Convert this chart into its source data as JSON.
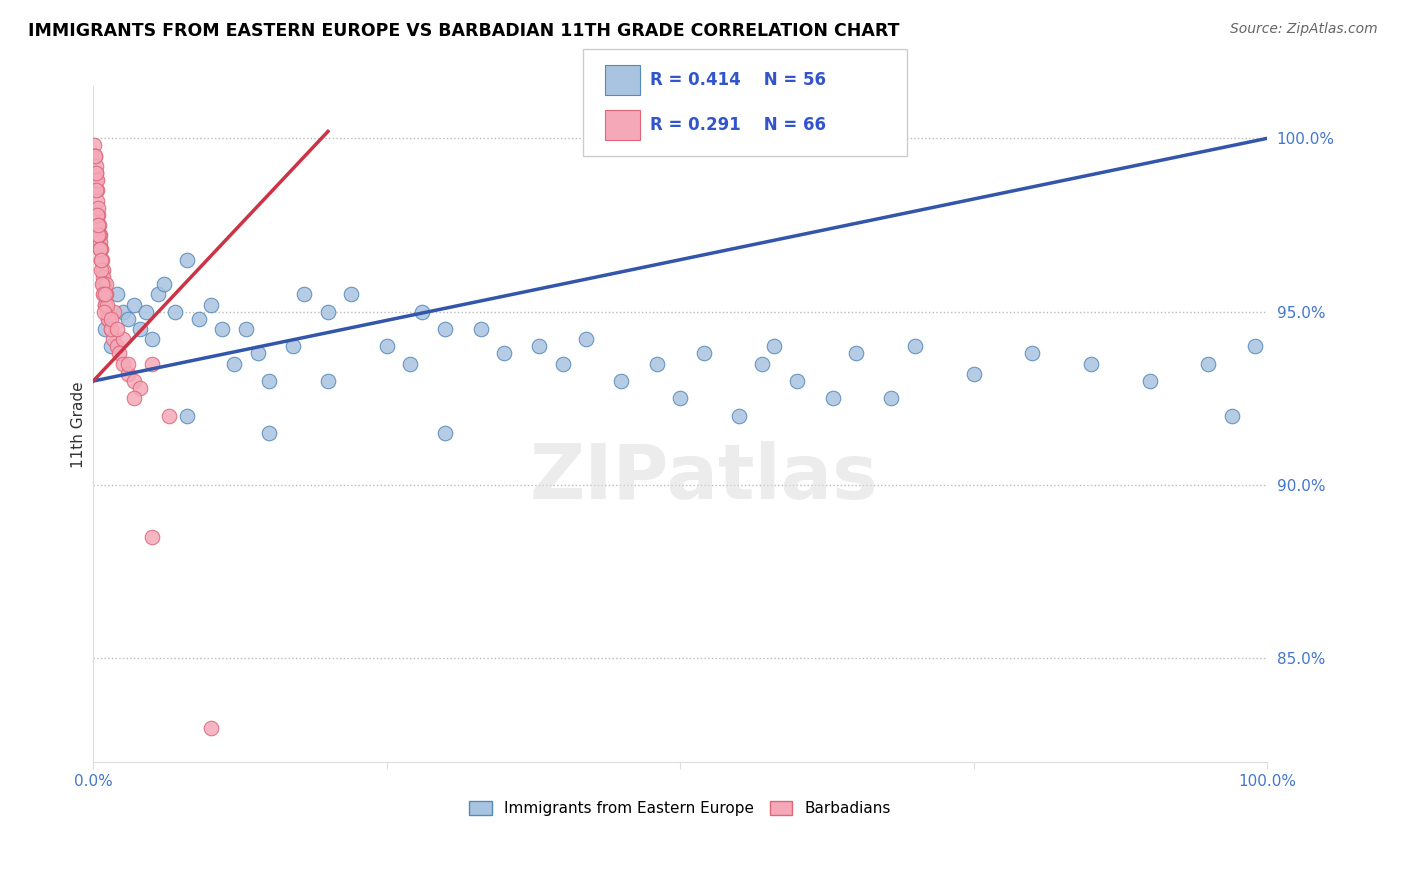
{
  "title": "IMMIGRANTS FROM EASTERN EUROPE VS BARBADIAN 11TH GRADE CORRELATION CHART",
  "source": "Source: ZipAtlas.com",
  "ylabel": "11th Grade",
  "blue_color": "#A8C4E0",
  "pink_color": "#F4A8B8",
  "blue_edge": "#5588BB",
  "pink_edge": "#DD6677",
  "trend_blue": "#3355AA",
  "trend_pink": "#CC3344",
  "legend_blue_R": "R = 0.414",
  "legend_blue_N": "N = 56",
  "legend_pink_R": "R = 0.291",
  "legend_pink_N": "N = 66",
  "legend_label_blue": "Immigrants from Eastern Europe",
  "legend_label_pink": "Barbadians",
  "blue_trend_x0": 0.0,
  "blue_trend_y0": 93.0,
  "blue_trend_x1": 100.0,
  "blue_trend_y1": 100.0,
  "pink_trend_x0": 0.0,
  "pink_trend_y0": 93.0,
  "pink_trend_x1": 20.0,
  "pink_trend_y1": 100.2,
  "ylim_low": 82.0,
  "ylim_high": 101.5,
  "xlim_low": 0.0,
  "xlim_high": 100.0,
  "ytick_vals": [
    85.0,
    90.0,
    95.0,
    100.0
  ],
  "ytick_labels": [
    "85.0%",
    "90.0%",
    "95.0%",
    "100.0%"
  ],
  "xtick_vals": [
    0.0,
    25.0,
    50.0,
    75.0,
    100.0
  ],
  "xtick_labels": [
    "0.0%",
    "",
    "",
    "",
    "100.0%"
  ],
  "blue_x": [
    1.0,
    1.5,
    2.0,
    2.5,
    3.0,
    3.5,
    4.0,
    4.5,
    5.0,
    5.5,
    6.0,
    7.0,
    8.0,
    9.0,
    10.0,
    11.0,
    12.0,
    13.0,
    14.0,
    15.0,
    17.0,
    18.0,
    20.0,
    22.0,
    25.0,
    27.0,
    28.0,
    30.0,
    33.0,
    35.0,
    38.0,
    40.0,
    42.0,
    45.0,
    48.0,
    50.0,
    52.0,
    55.0,
    57.0,
    58.0,
    60.0,
    63.0,
    65.0,
    68.0,
    70.0,
    75.0,
    80.0,
    85.0,
    90.0,
    95.0,
    97.0,
    99.0,
    8.0,
    15.0,
    20.0,
    30.0
  ],
  "blue_y": [
    94.5,
    94.0,
    95.5,
    95.0,
    94.8,
    95.2,
    94.5,
    95.0,
    94.2,
    95.5,
    95.8,
    95.0,
    96.5,
    94.8,
    95.2,
    94.5,
    93.5,
    94.5,
    93.8,
    93.0,
    94.0,
    95.5,
    95.0,
    95.5,
    94.0,
    93.5,
    95.0,
    94.5,
    94.5,
    93.8,
    94.0,
    93.5,
    94.2,
    93.0,
    93.5,
    92.5,
    93.8,
    92.0,
    93.5,
    94.0,
    93.0,
    92.5,
    93.8,
    92.5,
    94.0,
    93.2,
    93.8,
    93.5,
    93.0,
    93.5,
    92.0,
    94.0,
    92.0,
    91.5,
    93.0,
    91.5
  ],
  "pink_x": [
    0.05,
    0.1,
    0.15,
    0.2,
    0.25,
    0.3,
    0.35,
    0.4,
    0.45,
    0.5,
    0.55,
    0.6,
    0.65,
    0.7,
    0.75,
    0.8,
    0.85,
    0.9,
    0.95,
    1.0,
    1.1,
    1.2,
    1.3,
    1.5,
    1.7,
    1.8,
    2.0,
    2.2,
    2.5,
    3.0,
    3.5,
    4.0,
    5.0,
    6.5,
    0.2,
    0.3,
    0.4,
    0.5,
    0.6,
    0.7,
    0.8,
    0.9,
    1.0,
    1.1,
    1.2,
    1.3,
    1.5,
    0.15,
    0.25,
    0.35,
    0.45,
    0.55,
    0.65,
    0.75,
    0.85,
    0.95,
    2.5,
    1.5,
    1.0,
    2.0,
    3.0,
    0.4,
    0.2,
    3.5,
    5.0,
    10.0
  ],
  "pink_y": [
    99.8,
    99.5,
    99.5,
    99.0,
    98.8,
    98.5,
    98.2,
    97.8,
    97.5,
    97.5,
    97.2,
    97.0,
    96.8,
    96.5,
    96.5,
    96.2,
    96.0,
    95.8,
    95.5,
    95.2,
    95.5,
    95.0,
    94.8,
    94.5,
    94.2,
    95.0,
    94.0,
    93.8,
    93.5,
    93.2,
    93.0,
    92.8,
    93.5,
    92.0,
    99.2,
    98.8,
    98.0,
    97.2,
    96.8,
    96.2,
    95.8,
    95.5,
    95.2,
    95.8,
    95.2,
    94.8,
    94.5,
    99.5,
    98.5,
    97.8,
    97.2,
    96.8,
    96.5,
    95.8,
    95.5,
    95.0,
    94.2,
    94.8,
    95.5,
    94.5,
    93.5,
    97.5,
    99.0,
    92.5,
    88.5,
    83.0
  ]
}
